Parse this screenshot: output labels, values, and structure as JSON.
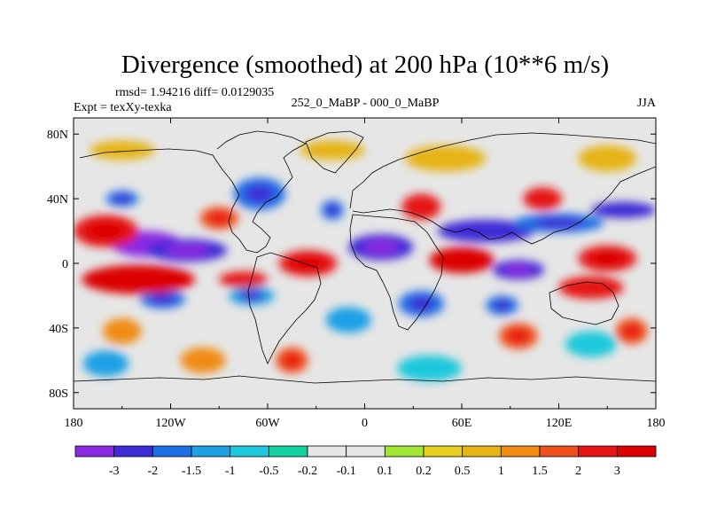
{
  "chart_data": {
    "type": "heatmap",
    "title": "Divergence (smoothed) at 200 hPa (10**6 m/s)",
    "stats_line": "rmsd= 1.94216 diff= 0.0129035",
    "experiment": "Expt = texXy-texka",
    "difference_label": "252_0_MaBP - 000_0_MaBP",
    "season": "JJA",
    "x_range": [
      -180,
      180
    ],
    "y_range": [
      -90,
      90
    ],
    "x_ticks": [
      {
        "value": -180,
        "label": "180"
      },
      {
        "value": -120,
        "label": "120W"
      },
      {
        "value": -60,
        "label": "60W"
      },
      {
        "value": 0,
        "label": "0"
      },
      {
        "value": 60,
        "label": "60E"
      },
      {
        "value": 120,
        "label": "120E"
      },
      {
        "value": 180,
        "label": "180"
      }
    ],
    "y_ticks": [
      {
        "value": 80,
        "label": "80N"
      },
      {
        "value": 40,
        "label": "40N"
      },
      {
        "value": 0,
        "label": "0"
      },
      {
        "value": -40,
        "label": "40S"
      },
      {
        "value": -80,
        "label": "80S"
      }
    ],
    "colorbar_levels": [
      "-3",
      "-2",
      "-1.5",
      "-1",
      "-0.5",
      "-0.2",
      "-0.1",
      "0.1",
      "0.2",
      "0.5",
      "1",
      "1.5",
      "2",
      "3"
    ],
    "colorbar_colors": [
      "#8a2be2",
      "#3c2bd6",
      "#1e6ee6",
      "#1ea0e6",
      "#1ec8dc",
      "#14d2a0",
      "#e6e6e6",
      "#e6e6e6",
      "#a0e632",
      "#e6d21e",
      "#e6b414",
      "#f08c14",
      "#f0501e",
      "#e61414",
      "#dc0000"
    ],
    "anomalies": [
      {
        "lon": -135,
        "lat": 12,
        "rx": 22,
        "ry": 8,
        "value": -3.2
      },
      {
        "lon": -110,
        "lat": 8,
        "rx": 25,
        "ry": 7,
        "value": -2.5
      },
      {
        "lon": 10,
        "lat": 10,
        "rx": 20,
        "ry": 8,
        "value": -2.6
      },
      {
        "lon": 95,
        "lat": -4,
        "rx": 16,
        "ry": 6,
        "value": -3.0
      },
      {
        "lon": 75,
        "lat": 20,
        "rx": 30,
        "ry": 7,
        "value": -2.3
      },
      {
        "lon": 120,
        "lat": 25,
        "rx": 28,
        "ry": 6,
        "value": -2.0
      },
      {
        "lon": 160,
        "lat": 33,
        "rx": 20,
        "ry": 5,
        "value": -2.2
      },
      {
        "lon": -150,
        "lat": 40,
        "rx": 10,
        "ry": 5,
        "value": -2.0
      },
      {
        "lon": -65,
        "lat": 43,
        "rx": 16,
        "ry": 10,
        "value": -2.0
      },
      {
        "lon": -20,
        "lat": 33,
        "rx": 7,
        "ry": 6,
        "value": -2.0
      },
      {
        "lon": 35,
        "lat": -25,
        "rx": 14,
        "ry": 8,
        "value": -2.0
      },
      {
        "lon": 85,
        "lat": -26,
        "rx": 10,
        "ry": 6,
        "value": -1.6
      },
      {
        "lon": -125,
        "lat": -22,
        "rx": 14,
        "ry": 6,
        "value": -2.0
      },
      {
        "lon": -70,
        "lat": -20,
        "rx": 14,
        "ry": 6,
        "value": -1.5
      },
      {
        "lon": -10,
        "lat": -35,
        "rx": 14,
        "ry": 8,
        "value": -1.4
      },
      {
        "lon": -160,
        "lat": -62,
        "rx": 14,
        "ry": 8,
        "value": -1.4
      },
      {
        "lon": 40,
        "lat": -65,
        "rx": 20,
        "ry": 8,
        "value": -1.0
      },
      {
        "lon": 140,
        "lat": -50,
        "rx": 16,
        "ry": 8,
        "value": -1.0
      },
      {
        "lon": -160,
        "lat": 20,
        "rx": 20,
        "ry": 10,
        "value": 2.6
      },
      {
        "lon": -140,
        "lat": -10,
        "rx": 35,
        "ry": 9,
        "value": 3.0
      },
      {
        "lon": -35,
        "lat": 0,
        "rx": 18,
        "ry": 8,
        "value": 2.4
      },
      {
        "lon": 60,
        "lat": 2,
        "rx": 20,
        "ry": 8,
        "value": 3.0
      },
      {
        "lon": 150,
        "lat": 3,
        "rx": 18,
        "ry": 8,
        "value": 2.5
      },
      {
        "lon": 140,
        "lat": -15,
        "rx": 20,
        "ry": 7,
        "value": 2.0
      },
      {
        "lon": -75,
        "lat": -10,
        "rx": 15,
        "ry": 5,
        "value": 2.0
      },
      {
        "lon": 35,
        "lat": 35,
        "rx": 12,
        "ry": 8,
        "value": 2.0
      },
      {
        "lon": 110,
        "lat": 40,
        "rx": 12,
        "ry": 7,
        "value": 2.2
      },
      {
        "lon": -90,
        "lat": 28,
        "rx": 12,
        "ry": 7,
        "value": 1.5
      },
      {
        "lon": 95,
        "lat": -45,
        "rx": 12,
        "ry": 8,
        "value": 1.5
      },
      {
        "lon": -150,
        "lat": -42,
        "rx": 12,
        "ry": 8,
        "value": 1.2
      },
      {
        "lon": 165,
        "lat": -42,
        "rx": 10,
        "ry": 8,
        "value": 1.5
      },
      {
        "lon": -45,
        "lat": -60,
        "rx": 10,
        "ry": 8,
        "value": 1.5
      },
      {
        "lon": -100,
        "lat": -60,
        "rx": 14,
        "ry": 8,
        "value": 1.0
      },
      {
        "lon": -20,
        "lat": 70,
        "rx": 20,
        "ry": 6,
        "value": 0.8
      },
      {
        "lon": 50,
        "lat": 65,
        "rx": 25,
        "ry": 8,
        "value": 0.9
      },
      {
        "lon": 150,
        "lat": 65,
        "rx": 18,
        "ry": 8,
        "value": 0.8
      },
      {
        "lon": -150,
        "lat": 70,
        "rx": 20,
        "ry": 6,
        "value": 0.5
      }
    ]
  }
}
